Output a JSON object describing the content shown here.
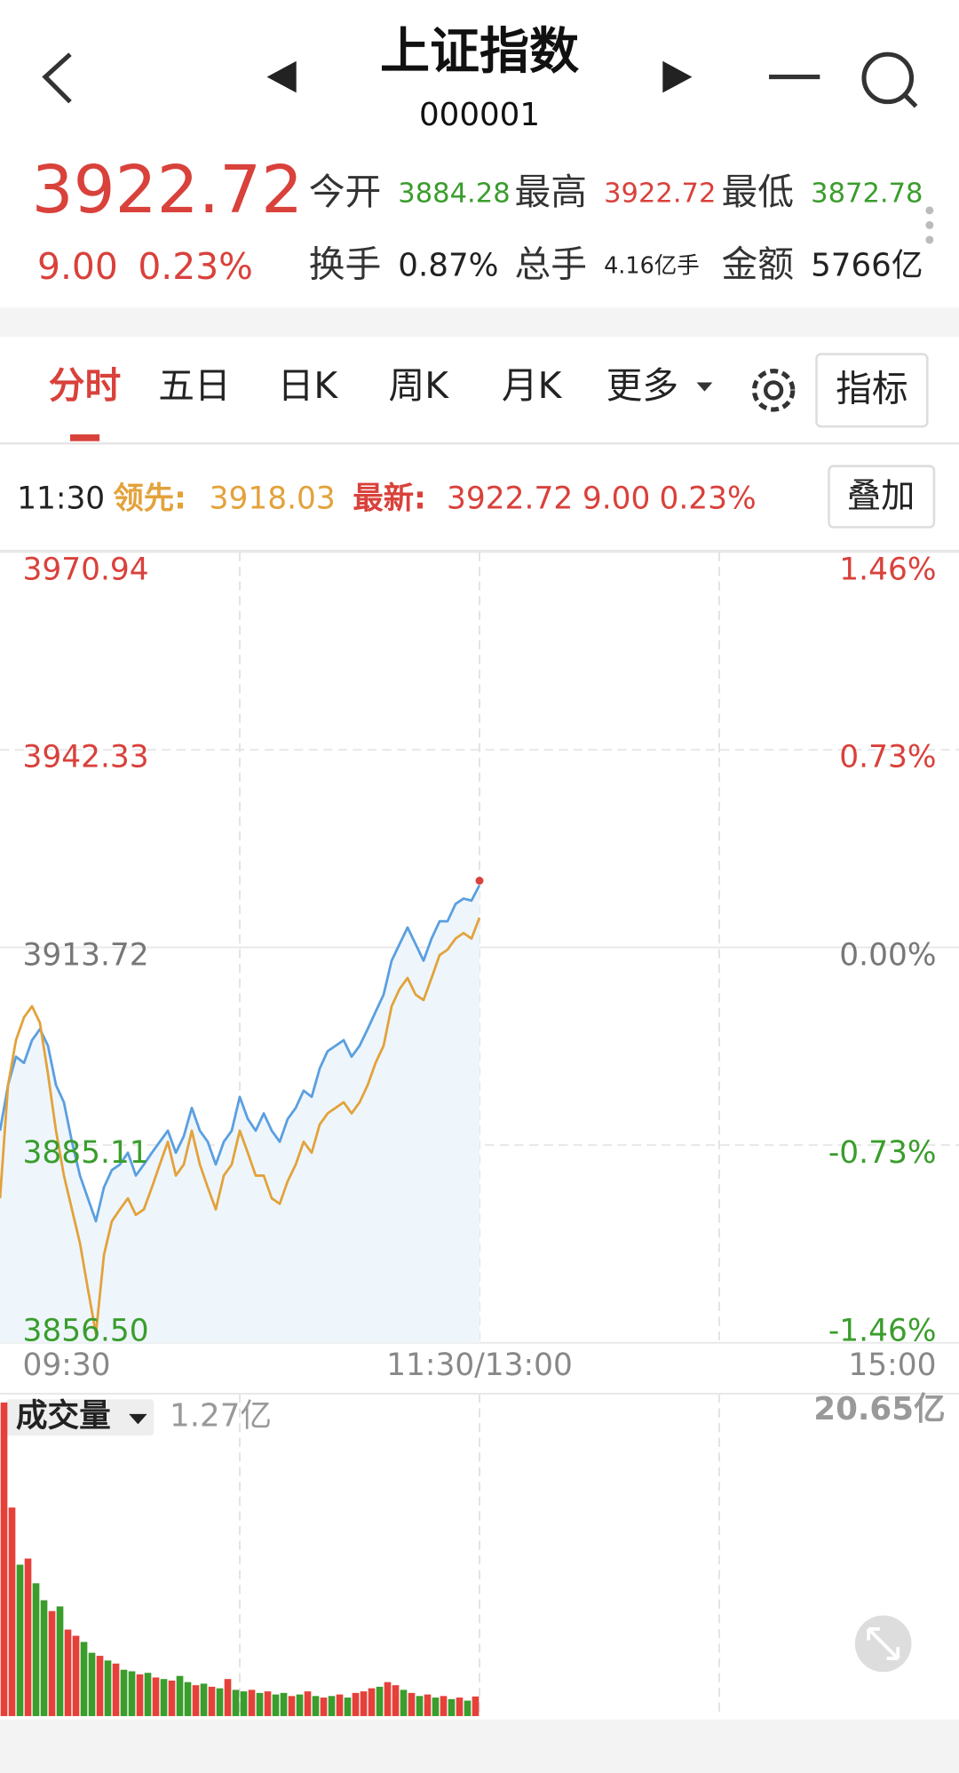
{
  "header": {
    "title": "上证指数",
    "code": "000001"
  },
  "quote": {
    "price": "3922.72",
    "change": "9.00",
    "change_pct": "0.23%",
    "stats": [
      {
        "label": "今开",
        "value": "3884.28",
        "color": "#3a9d2c"
      },
      {
        "label": "最高",
        "value": "3922.72",
        "color": "#d9413b"
      },
      {
        "label": "最低",
        "value": "3872.78",
        "color": "#3a9d2c"
      },
      {
        "label": "换手",
        "value": "0.87%",
        "color": "#222222"
      },
      {
        "label": "总手",
        "value": "4.16亿手",
        "color": "#222222"
      },
      {
        "label": "金额",
        "value": "5766亿",
        "color": "#222222"
      }
    ]
  },
  "tabs": [
    "分时",
    "五日",
    "日K",
    "周K",
    "月K"
  ],
  "active_tab": 0,
  "more": "更多",
  "indicator": "指标",
  "info": {
    "time": "11:30",
    "lead_label": "领先:",
    "lead_value": "3918.03",
    "latest_label": "最新:",
    "latest_value": "3922.72",
    "latest_change": "9.00",
    "latest_pct": "0.23%",
    "overlay": "叠加"
  },
  "chart_data": [
    {
      "type": "line",
      "x": [
        0,
        2,
        4,
        6,
        8,
        10,
        12,
        14,
        16,
        18,
        20,
        22,
        24,
        26,
        28,
        30,
        32,
        34,
        36,
        38,
        40,
        42,
        44,
        46,
        48,
        50,
        52,
        54,
        56,
        58,
        60,
        62,
        64,
        66,
        68,
        70,
        72,
        74,
        76,
        78,
        80,
        82,
        84,
        86,
        88,
        90,
        92,
        94,
        96,
        98,
        100,
        102,
        104,
        106,
        108,
        110,
        112,
        114,
        116,
        118,
        120
      ],
      "xlim": [
        0,
        240
      ],
      "xticks": [
        {
          "value": 0,
          "label": "09:30"
        },
        {
          "value": 120,
          "label": "11:30/13:00"
        },
        {
          "value": 240,
          "label": "15:00"
        }
      ],
      "xgrid": [
        60,
        120,
        180
      ],
      "ylim": [
        3856.5,
        3970.94
      ],
      "yticks": [
        {
          "value": 3970.94,
          "label": "3970.94"
        },
        {
          "value": 3942.33,
          "label": "3942.33"
        },
        {
          "value": 3913.72,
          "label": "3913.72"
        },
        {
          "value": 3885.11,
          "label": "3885.11"
        },
        {
          "value": 3856.5,
          "label": "3856.50"
        }
      ],
      "y2lim": [
        -1.46,
        1.46
      ],
      "y2ticks": [
        {
          "value": 1.46,
          "label": "1.46%"
        },
        {
          "value": 0.73,
          "label": "0.73%"
        },
        {
          "value": 0,
          "label": "0.00%"
        },
        {
          "value": -0.73,
          "label": "-0.73%"
        },
        {
          "value": -1.46,
          "label": "-1.46%"
        }
      ],
      "grid": true,
      "series": [
        {
          "color": "#5a9fe0",
          "fill": "#eef6fc",
          "values": [
            3887.2,
            3893.8,
            3897.9,
            3897.0,
            3900.3,
            3901.9,
            3899.5,
            3893.8,
            3891.3,
            3885.6,
            3880.7,
            3877.4,
            3874.1,
            3879.0,
            3881.5,
            3882.3,
            3884.0,
            3880.7,
            3882.3,
            3884.0,
            3885.6,
            3887.2,
            3884.0,
            3886.4,
            3890.5,
            3887.2,
            3885.6,
            3882.3,
            3885.6,
            3887.2,
            3892.1,
            3888.9,
            3887.2,
            3889.7,
            3887.2,
            3885.6,
            3888.9,
            3890.5,
            3893.0,
            3892.1,
            3896.2,
            3898.7,
            3899.5,
            3900.3,
            3897.9,
            3899.5,
            3901.9,
            3904.4,
            3906.9,
            3911.8,
            3914.2,
            3916.6,
            3914.2,
            3911.8,
            3915.0,
            3917.5,
            3917.5,
            3920.0,
            3920.8,
            3920.5,
            3922.72
          ]
        },
        {
          "color": "#e3a23b",
          "values": [
            3877.4,
            3893.8,
            3900.3,
            3903.6,
            3905.2,
            3902.8,
            3895.4,
            3887.2,
            3880.7,
            3875.8,
            3870.9,
            3864.3,
            3857.8,
            3869.2,
            3874.1,
            3875.8,
            3877.4,
            3875.0,
            3875.8,
            3879.0,
            3882.3,
            3885.6,
            3880.7,
            3882.3,
            3887.2,
            3882.3,
            3879.0,
            3875.8,
            3880.7,
            3882.3,
            3887.2,
            3884.0,
            3880.7,
            3880.7,
            3877.4,
            3876.6,
            3879.9,
            3882.3,
            3885.6,
            3884.0,
            3888.1,
            3889.7,
            3890.5,
            3891.3,
            3889.7,
            3891.3,
            3893.8,
            3897.0,
            3899.5,
            3905.2,
            3907.7,
            3909.3,
            3906.9,
            3906.1,
            3909.3,
            3912.6,
            3913.4,
            3915.0,
            3915.8,
            3915.0,
            3918.03
          ]
        }
      ]
    },
    {
      "type": "bar",
      "label": "成交量",
      "latest_label": "1.27亿",
      "x": [
        1,
        3,
        5,
        7,
        9,
        11,
        13,
        15,
        17,
        19,
        21,
        23,
        25,
        27,
        29,
        31,
        33,
        35,
        37,
        39,
        41,
        43,
        45,
        47,
        49,
        51,
        53,
        55,
        57,
        59,
        61,
        63,
        65,
        67,
        69,
        71,
        73,
        75,
        77,
        79,
        81,
        83,
        85,
        87,
        89,
        91,
        93,
        95,
        97,
        99,
        101,
        103,
        105,
        107,
        109,
        111,
        113,
        115,
        117,
        119
      ],
      "xlim": [
        0,
        240
      ],
      "ylim": [
        0,
        20.65
      ],
      "yticks": [
        {
          "value": 20.65,
          "label": "20.65亿"
        }
      ],
      "values": [
        20.3,
        13.5,
        9.8,
        10.2,
        8.6,
        7.5,
        6.8,
        7.1,
        5.6,
        5.2,
        4.8,
        4.1,
        3.9,
        3.6,
        3.4,
        3.0,
        2.9,
        2.7,
        2.8,
        2.5,
        2.4,
        2.3,
        2.6,
        2.2,
        2.0,
        2.1,
        1.9,
        1.8,
        2.4,
        1.7,
        1.6,
        1.7,
        1.5,
        1.6,
        1.4,
        1.5,
        1.3,
        1.4,
        1.6,
        1.3,
        1.2,
        1.3,
        1.4,
        1.2,
        1.5,
        1.6,
        1.8,
        1.9,
        2.2,
        2.0,
        1.7,
        1.5,
        1.3,
        1.4,
        1.2,
        1.3,
        1.1,
        1.2,
        1.0,
        1.27
      ],
      "bar_colors": [
        "#e5413a",
        "#e5413a",
        "#3a9d2c",
        "#e5413a",
        "#3a9d2c",
        "#3a9d2c",
        "#e5413a",
        "#3a9d2c",
        "#e5413a",
        "#e5413a",
        "#3a9d2c",
        "#3a9d2c",
        "#e5413a",
        "#3a9d2c",
        "#e5413a",
        "#3a9d2c",
        "#3a9d2c",
        "#e5413a",
        "#3a9d2c",
        "#e5413a",
        "#3a9d2c",
        "#e5413a",
        "#3a9d2c",
        "#3a9d2c",
        "#e5413a",
        "#3a9d2c",
        "#e5413a",
        "#3a9d2c",
        "#e5413a",
        "#3a9d2c",
        "#3a9d2c",
        "#e5413a",
        "#3a9d2c",
        "#e5413a",
        "#3a9d2c",
        "#3a9d2c",
        "#e5413a",
        "#3a9d2c",
        "#e5413a",
        "#3a9d2c",
        "#e5413a",
        "#3a9d2c",
        "#e5413a",
        "#3a9d2c",
        "#e5413a",
        "#e5413a",
        "#e5413a",
        "#3a9d2c",
        "#e5413a",
        "#e5413a",
        "#3a9d2c",
        "#e5413a",
        "#3a9d2c",
        "#e5413a",
        "#3a9d2c",
        "#e5413a",
        "#3a9d2c",
        "#e5413a",
        "#3a9d2c",
        "#e5413a"
      ]
    }
  ]
}
